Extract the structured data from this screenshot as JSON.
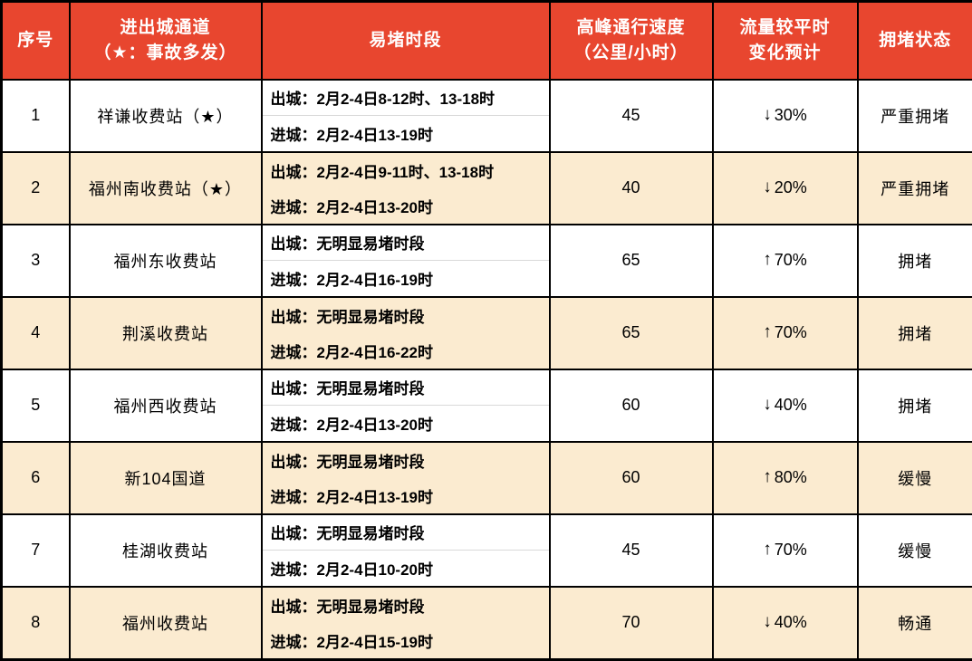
{
  "colors": {
    "header_bg": "#E8462F",
    "header_text": "#FFFFFF",
    "row_alt_bg": "#FBEBD0",
    "row_bg": "#FFFFFF",
    "border": "#000000",
    "sub_divider": "#D9D9D9",
    "body_text": "#000000"
  },
  "header": {
    "col_num": "序号",
    "col_channel_line1": "进出城通道",
    "col_channel_line2": "（★：事故多发）",
    "col_periods": "易堵时段",
    "col_speed_line1": "高峰通行速度",
    "col_speed_line2": "（公里/小时）",
    "col_flow_line1": "流量较平时",
    "col_flow_line2": "变化预计",
    "col_status": "拥堵状态"
  },
  "rows": [
    {
      "num": "1",
      "station": "祥谦收费站（★）",
      "out_label": "出城：",
      "out_time": "2月2-4日8-12时、13-18时",
      "in_label": "进城：",
      "in_time": "2月2-4日13-19时",
      "speed": "45",
      "arrow": "↓",
      "change": "30%",
      "status": "严重拥堵"
    },
    {
      "num": "2",
      "station": "福州南收费站（★）",
      "out_label": "出城：",
      "out_time": "2月2-4日9-11时、13-18时",
      "in_label": "进城：",
      "in_time": "2月2-4日13-20时",
      "speed": "40",
      "arrow": "↓",
      "change": "20%",
      "status": "严重拥堵"
    },
    {
      "num": "3",
      "station": "福州东收费站",
      "out_label": "出城：",
      "out_time": "无明显易堵时段",
      "in_label": "进城：",
      "in_time": "2月2-4日16-19时",
      "speed": "65",
      "arrow": "↑",
      "change": "70%",
      "status": "拥堵"
    },
    {
      "num": "4",
      "station": "荆溪收费站",
      "out_label": "出城：",
      "out_time": "无明显易堵时段",
      "in_label": "进城：",
      "in_time": "2月2-4日16-22时",
      "speed": "65",
      "arrow": "↑",
      "change": "70%",
      "status": "拥堵"
    },
    {
      "num": "5",
      "station": "福州西收费站",
      "out_label": "出城：",
      "out_time": "无明显易堵时段",
      "in_label": "进城：",
      "in_time": "2月2-4日13-20时",
      "speed": "60",
      "arrow": "↓",
      "change": "40%",
      "status": "拥堵"
    },
    {
      "num": "6",
      "station": "新104国道",
      "out_label": "出城：",
      "out_time": "无明显易堵时段",
      "in_label": "进城：",
      "in_time": "2月2-4日13-19时",
      "speed": "60",
      "arrow": "↑",
      "change": "80%",
      "status": "缓慢"
    },
    {
      "num": "7",
      "station": "桂湖收费站",
      "out_label": "出城：",
      "out_time": "无明显易堵时段",
      "in_label": "进城：",
      "in_time": "2月2-4日10-20时",
      "speed": "45",
      "arrow": "↑",
      "change": "70%",
      "status": "缓慢"
    },
    {
      "num": "8",
      "station": "福州收费站",
      "out_label": "出城：",
      "out_time": "无明显易堵时段",
      "in_label": "进城：",
      "in_time": "2月2-4日15-19时",
      "speed": "70",
      "arrow": "↓",
      "change": "40%",
      "status": "畅通"
    }
  ]
}
